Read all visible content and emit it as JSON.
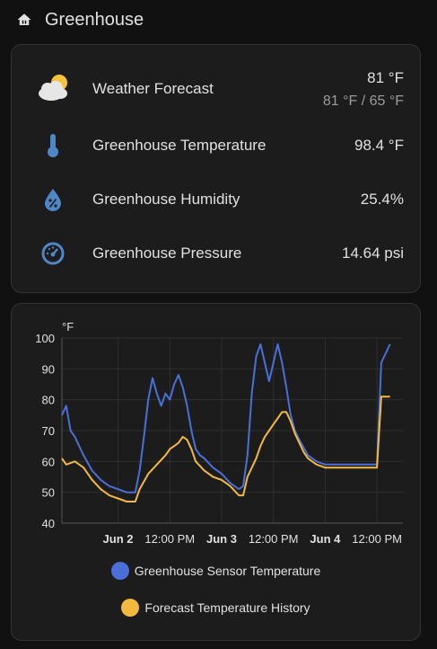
{
  "header": {
    "title": "Greenhouse"
  },
  "entities": [
    {
      "name": "Weather Forecast",
      "value": "81 °F",
      "sub": "81 °F / 65 °F",
      "icon": "weather-partly-cloudy-icon"
    },
    {
      "name": "Greenhouse Temperature",
      "value": "98.4 °F",
      "icon": "thermometer-icon"
    },
    {
      "name": "Greenhouse Humidity",
      "value": "25.4%",
      "icon": "water-percent-icon"
    },
    {
      "name": "Greenhouse Pressure",
      "value": "14.64 psi",
      "icon": "gauge-icon"
    }
  ],
  "colors": {
    "sensor": "#4a6fd8",
    "forecast": "#f3b93f",
    "icon": "#4f86c6"
  },
  "chart_data": {
    "type": "line",
    "ylabel": "°F",
    "ylim": [
      40,
      100
    ],
    "yticks": [
      40,
      50,
      60,
      70,
      80,
      90,
      100
    ],
    "xticks": [
      "Jun 2",
      "12:00 PM",
      "Jun 3",
      "12:00 PM",
      "Jun 4",
      "12:00 PM"
    ],
    "xrange_hours": [
      -13,
      66
    ],
    "grid": true,
    "series": [
      {
        "name": "Greenhouse Sensor Temperature",
        "points": [
          [
            -13,
            75
          ],
          [
            -12,
            78
          ],
          [
            -11,
            70
          ],
          [
            -10,
            68
          ],
          [
            -8,
            62
          ],
          [
            -6,
            57
          ],
          [
            -4,
            54
          ],
          [
            -2,
            52
          ],
          [
            0,
            51
          ],
          [
            2,
            50
          ],
          [
            4,
            50
          ],
          [
            5,
            57
          ],
          [
            6,
            68
          ],
          [
            7,
            80
          ],
          [
            8,
            87
          ],
          [
            9,
            82
          ],
          [
            10,
            78
          ],
          [
            11,
            82
          ],
          [
            12,
            80
          ],
          [
            13,
            85
          ],
          [
            14,
            88
          ],
          [
            15,
            84
          ],
          [
            16,
            78
          ],
          [
            17,
            70
          ],
          [
            18,
            64
          ],
          [
            19,
            62
          ],
          [
            20,
            61
          ],
          [
            22,
            58
          ],
          [
            24,
            56
          ],
          [
            26,
            53
          ],
          [
            28,
            51
          ],
          [
            29,
            52
          ],
          [
            30,
            62
          ],
          [
            31,
            82
          ],
          [
            32,
            94
          ],
          [
            33,
            98
          ],
          [
            34,
            92
          ],
          [
            35,
            86
          ],
          [
            36,
            92
          ],
          [
            37,
            98
          ],
          [
            38,
            92
          ],
          [
            39,
            84
          ],
          [
            40,
            75
          ],
          [
            41,
            70
          ],
          [
            42,
            67
          ],
          [
            44,
            62
          ],
          [
            46,
            60
          ],
          [
            48,
            59
          ],
          [
            51,
            59
          ],
          [
            59,
            59
          ],
          [
            60,
            59
          ],
          [
            61,
            92
          ],
          [
            62,
            95
          ],
          [
            63,
            98
          ]
        ]
      },
      {
        "name": "Forecast Temperature History",
        "points": [
          [
            -13,
            61
          ],
          [
            -12,
            59
          ],
          [
            -10,
            60
          ],
          [
            -8,
            58
          ],
          [
            -6,
            54
          ],
          [
            -4,
            51
          ],
          [
            -2,
            49
          ],
          [
            0,
            48
          ],
          [
            2,
            47
          ],
          [
            4,
            47
          ],
          [
            5,
            51
          ],
          [
            7,
            56
          ],
          [
            9,
            59
          ],
          [
            11,
            62
          ],
          [
            12,
            64
          ],
          [
            13,
            65
          ],
          [
            14,
            66
          ],
          [
            15,
            68
          ],
          [
            16,
            67
          ],
          [
            17,
            64
          ],
          [
            18,
            60
          ],
          [
            20,
            57
          ],
          [
            22,
            55
          ],
          [
            24,
            54
          ],
          [
            26,
            52
          ],
          [
            28,
            49
          ],
          [
            29,
            49
          ],
          [
            30,
            55
          ],
          [
            32,
            61
          ],
          [
            33,
            65
          ],
          [
            34,
            68
          ],
          [
            35,
            70
          ],
          [
            36,
            72
          ],
          [
            37,
            74
          ],
          [
            38,
            76
          ],
          [
            39,
            76
          ],
          [
            40,
            73
          ],
          [
            41,
            69
          ],
          [
            42,
            66
          ],
          [
            43,
            63
          ],
          [
            44,
            61
          ],
          [
            46,
            59
          ],
          [
            48,
            58
          ],
          [
            50,
            58
          ],
          [
            52,
            58
          ],
          [
            59,
            58
          ],
          [
            60,
            58
          ],
          [
            61,
            81
          ],
          [
            63,
            81
          ]
        ]
      }
    ],
    "legend": [
      "Greenhouse Sensor Temperature",
      "Forecast Temperature History"
    ],
    "legend_position": "bottom"
  }
}
